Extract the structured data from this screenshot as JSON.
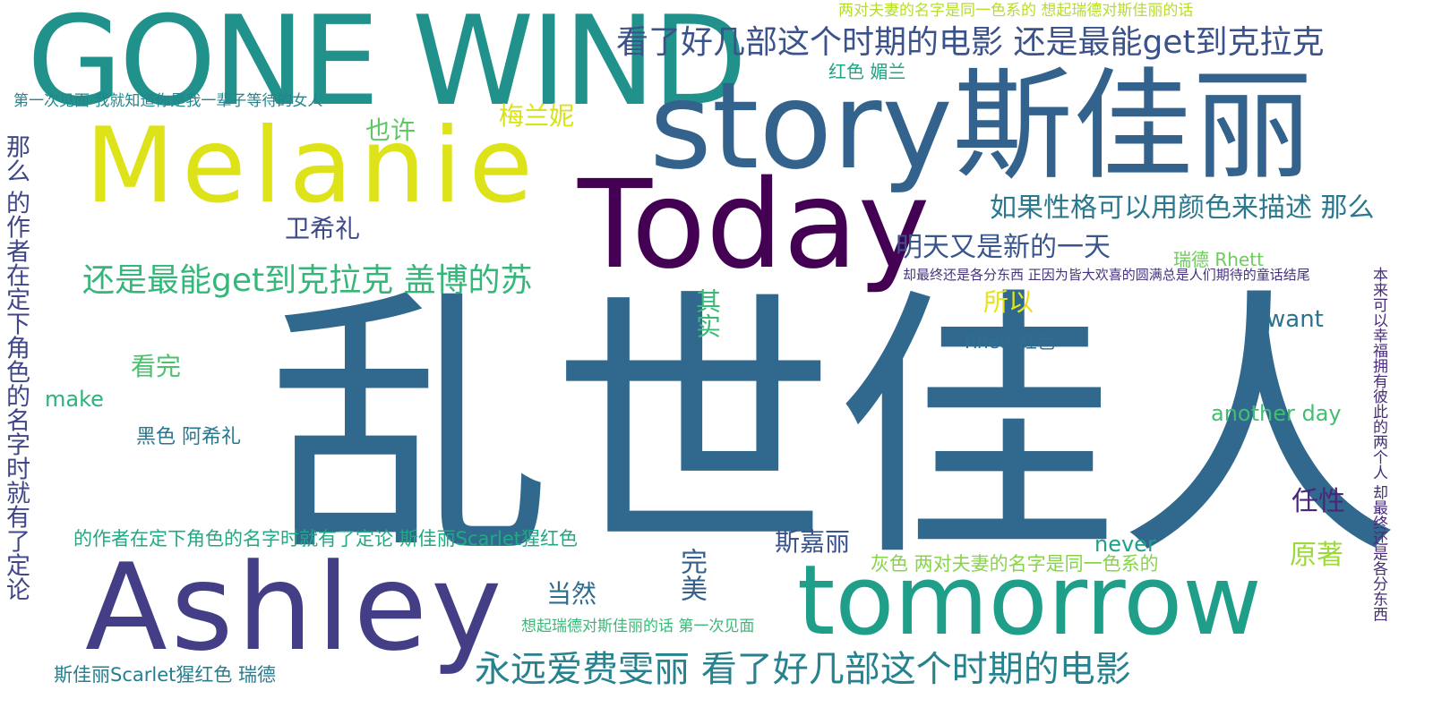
{
  "words": [
    {
      "text": "乱世佳人",
      "color": "#31688e"
    },
    {
      "text": "GONE WIND",
      "color": "#21918c"
    },
    {
      "text": "Melanie",
      "color": "#dde318"
    },
    {
      "text": "story斯佳丽",
      "color": "#33638d"
    },
    {
      "text": "Today",
      "color": "#440154"
    },
    {
      "text": "Ashley",
      "color": "#433e85"
    },
    {
      "text": "tomorrow",
      "color": "#1f9e89"
    },
    {
      "text": "看了好几部这个时期的电影 还是最能get到克拉克",
      "color": "#3b528b"
    },
    {
      "text": "永远爱费雯丽 看了好几部这个时期的电影",
      "color": "#26828e"
    },
    {
      "text": "还是最能get到克拉克 盖博的苏",
      "color": "#35b779"
    },
    {
      "text": "如果性格可以用颜色来描述 那么",
      "color": "#2a788e"
    },
    {
      "text": "明天又是新的一天",
      "color": "#39568c"
    },
    {
      "text": "两对夫妻的名字是同一色系的 想起瑞德对斯佳丽的话",
      "color": "#b5de2b"
    },
    {
      "text": "红色 媚兰",
      "color": "#20a486"
    },
    {
      "text": "第一次见面 我就知道你是我一辈子等待的女人",
      "color": "#25848e"
    },
    {
      "text": "梅兰妮",
      "color": "#d8e219"
    },
    {
      "text": "也许",
      "color": "#5ec962"
    },
    {
      "text": "卫希礼",
      "color": "#3e4989"
    },
    {
      "text": "瑞德 Rhett",
      "color": "#6ccd5a"
    },
    {
      "text": "却最终还是各分东西 正因为皆大欢喜的圆满总是人们期待的童话结尾",
      "color": "#46337e"
    },
    {
      "text": "所以",
      "color": "#e5e419"
    },
    {
      "text": "其实",
      "color": "#3aba76"
    },
    {
      "text": "want",
      "color": "#2c718e"
    },
    {
      "text": "Rhett 红色",
      "color": "#2e6e8e"
    },
    {
      "text": "看完",
      "color": "#4ac16d"
    },
    {
      "text": "make",
      "color": "#2db27d"
    },
    {
      "text": "黑色 阿希礼",
      "color": "#2a768e"
    },
    {
      "text": "another day",
      "color": "#42be71"
    },
    {
      "text": "任性",
      "color": "#482878"
    },
    {
      "text": "的作者在定下角色的名字时就有了定论 斯佳丽Scarlet猩红色",
      "color": "#22a884"
    },
    {
      "text": "斯嘉丽",
      "color": "#39558c"
    },
    {
      "text": "never",
      "color": "#1fa188"
    },
    {
      "text": "原著",
      "color": "#9dd93b"
    },
    {
      "text": "灰色 两对夫妻的名字是同一色系的",
      "color": "#86d549"
    },
    {
      "text": "完美",
      "color": "#355f8d"
    },
    {
      "text": "当然",
      "color": "#2f6c8e"
    },
    {
      "text": "想起瑞德对斯佳丽的话 第一次见面",
      "color": "#38b977"
    },
    {
      "text": "斯佳丽Scarlet猩红色 瑞德",
      "color": "#287d8e"
    },
    {
      "text": "那么 的作者在定下角色的名字时就有了定论",
      "color": "#3f4788"
    },
    {
      "text": "本来可以幸福拥有彼此的两个人 却最终还是各分东西",
      "color": "#472c7a"
    }
  ]
}
